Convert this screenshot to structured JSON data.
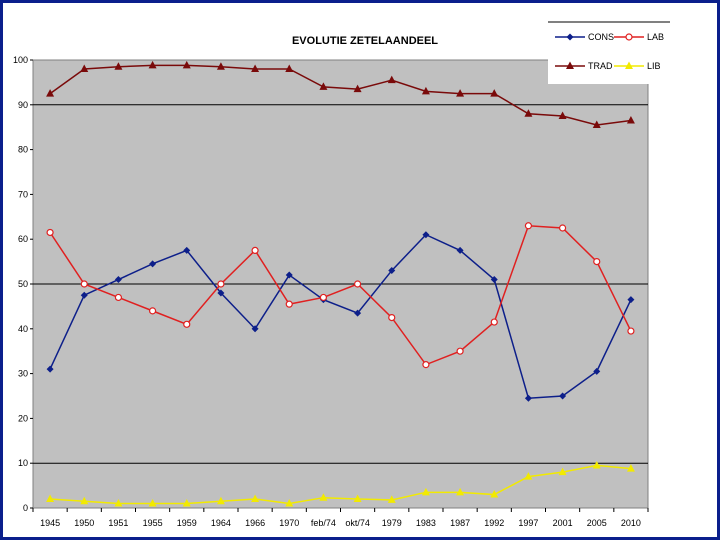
{
  "chart_data": {
    "type": "line",
    "title": "EVOLUTIE ZETELAANDEEL",
    "xlabel": "",
    "ylabel": "",
    "ylim": [
      0,
      100
    ],
    "yticks": [
      0,
      10,
      20,
      30,
      40,
      50,
      60,
      70,
      80,
      90,
      100
    ],
    "grid": "horizontal at 10, 50, 90",
    "legend_position": "top-right",
    "categories": [
      "1945",
      "1950",
      "1951",
      "1955",
      "1959",
      "1964",
      "1966",
      "1970",
      "feb/74",
      "okt/74",
      "1979",
      "1983",
      "1987",
      "1992",
      "1997",
      "2001",
      "2005",
      "2010"
    ],
    "series": [
      {
        "name": "CONS",
        "color": "#0d1f8a",
        "marker": "diamond",
        "values": [
          31,
          47.5,
          51,
          54.5,
          57.5,
          48,
          40,
          52,
          46.5,
          43.5,
          53,
          61,
          57.5,
          51,
          24.5,
          25,
          30.5,
          46.5
        ]
      },
      {
        "name": "LAB",
        "color": "#e02020",
        "marker": "circle-open",
        "values": [
          61.5,
          50,
          47,
          44,
          41,
          50,
          57.5,
          45.5,
          47,
          50,
          42.5,
          32,
          35,
          41.5,
          63,
          62.5,
          55,
          39.5
        ]
      },
      {
        "name": "TRAD",
        "color": "#7a0a0a",
        "marker": "triangle",
        "values": [
          92.5,
          98,
          98.5,
          98.8,
          98.8,
          98.5,
          98,
          98,
          94,
          93.5,
          95.5,
          93,
          92.5,
          92.5,
          88,
          87.5,
          85.5,
          86.5
        ]
      },
      {
        "name": "LIB",
        "color": "#f2ea00",
        "marker": "triangle",
        "values": [
          2,
          1.5,
          1,
          1,
          1,
          1.5,
          2,
          1,
          2.3,
          2,
          1.8,
          3.5,
          3.5,
          3,
          7,
          8,
          9.5,
          8.8
        ]
      }
    ]
  }
}
